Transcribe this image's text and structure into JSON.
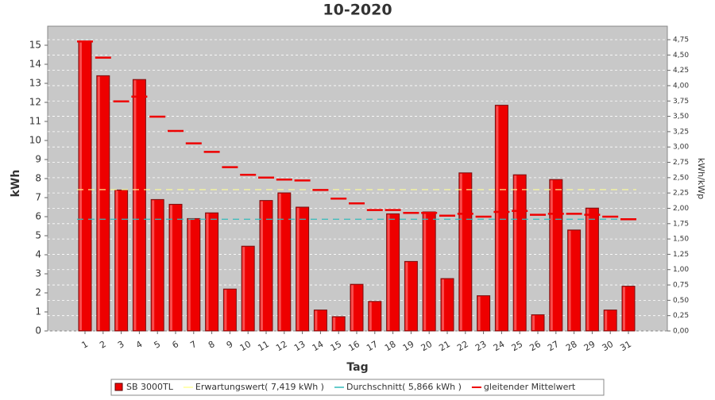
{
  "chart_data": {
    "type": "bar",
    "title": "10-2020",
    "x_label": "Tag",
    "y_label": "kWh",
    "y2_label": "kWh/kWp",
    "categories": [
      "1",
      "2",
      "3",
      "4",
      "5",
      "6",
      "7",
      "8",
      "9",
      "10",
      "11",
      "12",
      "13",
      "14",
      "15",
      "16",
      "17",
      "18",
      "19",
      "20",
      "21",
      "22",
      "23",
      "24",
      "25",
      "26",
      "27",
      "28",
      "29",
      "30",
      "31"
    ],
    "series": [
      {
        "name": "SB 3000TL",
        "color": "#ee0000",
        "values": [
          15.2,
          13.4,
          7.4,
          13.2,
          6.9,
          6.65,
          5.9,
          6.2,
          2.2,
          4.45,
          6.85,
          7.25,
          6.5,
          1.1,
          0.75,
          2.45,
          1.55,
          6.15,
          3.65,
          6.25,
          2.75,
          8.3,
          1.85,
          11.85,
          8.2,
          0.85,
          7.95,
          5.3,
          6.45,
          1.1,
          2.35
        ]
      },
      {
        "name": "Erwartungswert( 7,419 kWh )",
        "color": "#ffff99",
        "value": 7.419
      },
      {
        "name": "Durchschnitt( 5,866 kWh )",
        "color": "#33bbbb",
        "value": 5.866
      },
      {
        "name": "gleitender Mittelwert",
        "color": "#ee0000",
        "values": [
          15.2,
          14.35,
          12.05,
          12.3,
          11.25,
          10.5,
          9.85,
          9.4,
          8.6,
          8.2,
          8.05,
          7.95,
          7.9,
          7.4,
          6.95,
          6.7,
          6.35,
          6.35,
          6.2,
          6.2,
          6.05,
          6.15,
          6.0,
          6.25,
          6.3,
          6.1,
          6.15,
          6.15,
          6.1,
          6.0,
          5.866
        ]
      }
    ],
    "ylim": [
      0,
      16
    ],
    "yticks": [
      0,
      1,
      2,
      3,
      4,
      5,
      6,
      7,
      8,
      9,
      10,
      11,
      12,
      13,
      14,
      15
    ],
    "y2lim": [
      0,
      4.97
    ],
    "y2ticks": [
      {
        "value": 0,
        "label": "0,00"
      },
      {
        "value": 0.25,
        "label": "0,25"
      },
      {
        "value": 0.5,
        "label": "0,50"
      },
      {
        "value": 0.75,
        "label": "0,75"
      },
      {
        "value": 1,
        "label": "1,00"
      },
      {
        "value": 1.25,
        "label": "1,25"
      },
      {
        "value": 1.5,
        "label": "1,50"
      },
      {
        "value": 1.75,
        "label": "1,75"
      },
      {
        "value": 2,
        "label": "2,00"
      },
      {
        "value": 2.25,
        "label": "2,25"
      },
      {
        "value": 2.5,
        "label": "2,50"
      },
      {
        "value": 2.75,
        "label": "2,75"
      },
      {
        "value": 3,
        "label": "3,00"
      },
      {
        "value": 3.25,
        "label": "3,25"
      },
      {
        "value": 3.5,
        "label": "3,50"
      },
      {
        "value": 3.75,
        "label": "3,75"
      },
      {
        "value": 4,
        "label": "4,00"
      },
      {
        "value": 4.25,
        "label": "4,25"
      },
      {
        "value": 4.5,
        "label": "4,50"
      },
      {
        "value": 4.75,
        "label": "4,75"
      }
    ],
    "grid": true
  }
}
